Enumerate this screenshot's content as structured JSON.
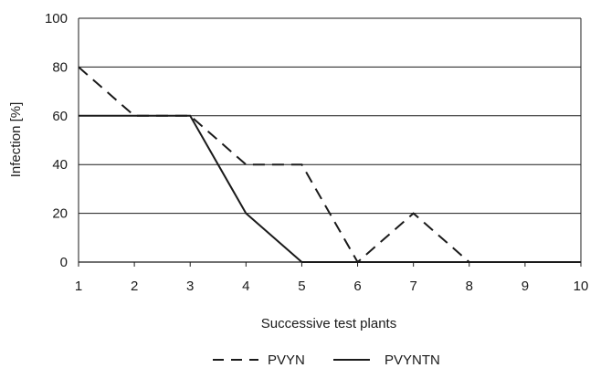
{
  "chart_data": {
    "type": "line",
    "title": "",
    "xlabel": "Successive test plants",
    "ylabel": "Infection [%]",
    "x": [
      1,
      2,
      3,
      4,
      5,
      6,
      7,
      8,
      9,
      10
    ],
    "xlim": [
      1,
      10
    ],
    "ylim": [
      0,
      100
    ],
    "yticks": [
      0,
      20,
      40,
      60,
      80,
      100
    ],
    "xticks": [
      1,
      2,
      3,
      4,
      5,
      6,
      7,
      8,
      9,
      10
    ],
    "grid": "horizontal",
    "legend_position": "bottom",
    "series": [
      {
        "name": "PVYN",
        "style": "dashed",
        "color": "#1a1a1a",
        "values": [
          80,
          60,
          60,
          40,
          40,
          0,
          20,
          0,
          0,
          0
        ]
      },
      {
        "name": "PVYNTN",
        "style": "solid",
        "color": "#1a1a1a",
        "values": [
          60,
          60,
          60,
          20,
          0,
          0,
          0,
          0,
          0,
          0
        ]
      }
    ]
  }
}
